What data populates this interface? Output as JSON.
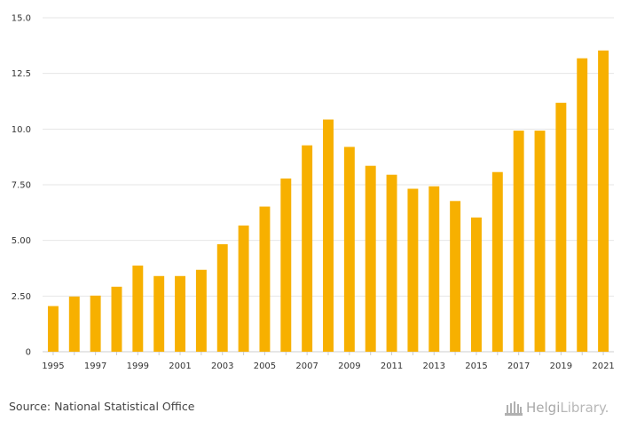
{
  "chart_data": {
    "type": "bar",
    "categories": [
      "1995",
      "1996",
      "1997",
      "1998",
      "1999",
      "2000",
      "2001",
      "2002",
      "2003",
      "2004",
      "2005",
      "2006",
      "2007",
      "2008",
      "2009",
      "2010",
      "2011",
      "2012",
      "2013",
      "2014",
      "2015",
      "2016",
      "2017",
      "2018",
      "2019",
      "2020",
      "2021"
    ],
    "values": [
      2.05,
      2.48,
      2.52,
      2.92,
      3.87,
      3.4,
      3.4,
      3.68,
      4.83,
      5.67,
      6.52,
      7.78,
      9.27,
      10.43,
      9.2,
      8.35,
      7.95,
      7.32,
      7.43,
      6.77,
      6.03,
      8.07,
      9.93,
      9.93,
      11.18,
      13.18,
      13.53
    ],
    "x_tick_labels": [
      "1995",
      "1997",
      "1999",
      "2001",
      "2003",
      "2005",
      "2007",
      "2009",
      "2011",
      "2013",
      "2015",
      "2017",
      "2019",
      "2021"
    ],
    "y_tick_labels": [
      "0",
      "2.50",
      "5.00",
      "7.50",
      "10.0",
      "12.5",
      "15.0"
    ],
    "y_tick_values": [
      0,
      2.5,
      5,
      7.5,
      10,
      12.5,
      15
    ],
    "ylim": [
      0,
      15
    ],
    "title": "",
    "xlabel": "",
    "ylabel": "",
    "grid": true,
    "bar_color": "#f7b000",
    "grid_color": "#e6e6e6"
  },
  "footer": {
    "source": "Source: National Statistical Office",
    "logo_part1": "Helgi",
    "logo_part2": "Library."
  }
}
